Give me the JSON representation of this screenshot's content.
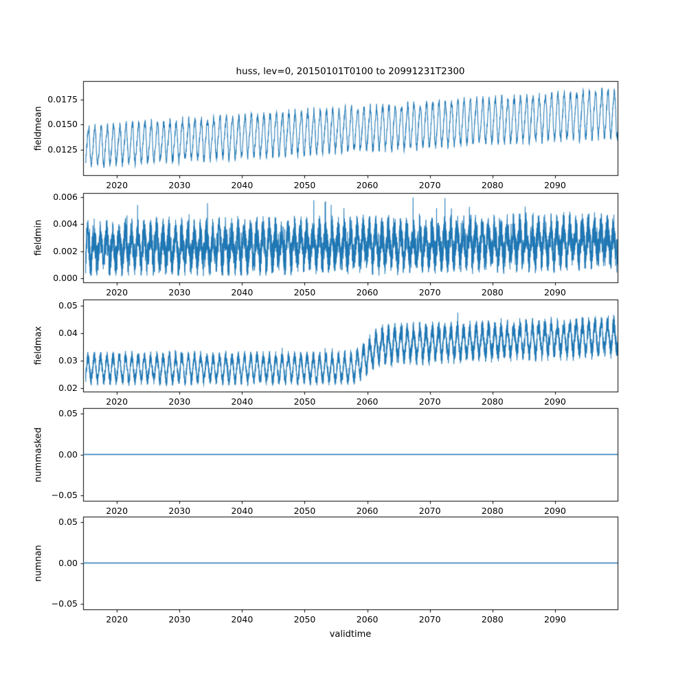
{
  "title": "huss, lev=0, 20150101T0100 to 20991231T2300",
  "xlabel": "validtime",
  "accent_color": "#1f77b4",
  "figure_bg": "#ffffff",
  "x_axis": {
    "xlim": [
      2014.6,
      2100.0
    ],
    "data_start": 2015.0,
    "data_end": 2099.96,
    "ticks": [
      2020,
      2030,
      2040,
      2050,
      2060,
      2070,
      2080,
      2090
    ],
    "tick_labels": [
      "2020",
      "2030",
      "2040",
      "2050",
      "2060",
      "2070",
      "2080",
      "2090"
    ]
  },
  "chart_data": [
    {
      "type": "line",
      "ylabel": "fieldmean",
      "ylim": [
        0.01,
        0.0193
      ],
      "yticks": [
        0.0125,
        0.015,
        0.0175
      ],
      "ytick_labels": [
        "0.0125",
        "0.0150",
        "0.0175"
      ],
      "grid": false,
      "legend": false,
      "series": {
        "name": "fieldmean",
        "kind": "seasonal_trend",
        "base_start": 0.01285,
        "base_end": 0.01615,
        "amp_start": 0.00175,
        "amp_end": 0.00215,
        "harmonic": 0.0003,
        "noise": 0.00045,
        "observed_min": 0.0106,
        "observed_max": 0.0189,
        "points_per_year": 36
      }
    },
    {
      "type": "line",
      "ylabel": "fieldmin",
      "ylim": [
        -0.0003,
        0.0063
      ],
      "yticks": [
        0.0,
        0.002,
        0.004,
        0.006
      ],
      "ytick_labels": [
        "0.000",
        "0.002",
        "0.004",
        "0.006"
      ],
      "grid": false,
      "legend": false,
      "series": {
        "name": "fieldmin",
        "kind": "noisy_band",
        "base_start": 0.0022,
        "base_end": 0.0027,
        "seasonal_amp": 0.001,
        "noise": 0.0013,
        "spike": 0.0018,
        "floor": 0.0002,
        "ceil_start": 0.0053,
        "ceil_end": 0.0064,
        "observed_min": 0.0002,
        "observed_max": 0.0063,
        "points_per_year": 70
      }
    },
    {
      "type": "line",
      "ylabel": "fieldmax",
      "ylim": [
        0.0187,
        0.0523
      ],
      "yticks": [
        0.02,
        0.03,
        0.04,
        0.05
      ],
      "ytick_labels": [
        "0.02",
        "0.03",
        "0.04",
        "0.05"
      ],
      "grid": false,
      "legend": false,
      "series": {
        "name": "fieldmax",
        "kind": "step_band",
        "base_early": 0.0272,
        "base_late": 0.0358,
        "seas_early": 0.0042,
        "seas_late": 0.0048,
        "noise_early": 0.0023,
        "noise_late": 0.0034,
        "spike": 0.004,
        "step_start": 2057,
        "step_end": 2063,
        "late_trend": 8e-05,
        "floor_early": 0.0206,
        "floor_late": 0.026,
        "ceil": 0.0518,
        "observed_min": 0.0205,
        "observed_max": 0.0515,
        "points_per_year": 70
      }
    },
    {
      "type": "line",
      "ylabel": "nummasked",
      "ylim": [
        -0.057,
        0.057
      ],
      "yticks": [
        -0.05,
        0.0,
        0.05
      ],
      "ytick_labels": [
        "−0.05",
        "0.00",
        "0.05"
      ],
      "grid": false,
      "legend": false,
      "series": {
        "name": "nummasked",
        "kind": "constant",
        "value": 0.0
      }
    },
    {
      "type": "line",
      "ylabel": "numnan",
      "ylim": [
        -0.057,
        0.057
      ],
      "yticks": [
        -0.05,
        0.0,
        0.05
      ],
      "ytick_labels": [
        "−0.05",
        "0.00",
        "0.05"
      ],
      "grid": false,
      "legend": false,
      "series": {
        "name": "numnan",
        "kind": "constant",
        "value": 0.0
      }
    }
  ]
}
